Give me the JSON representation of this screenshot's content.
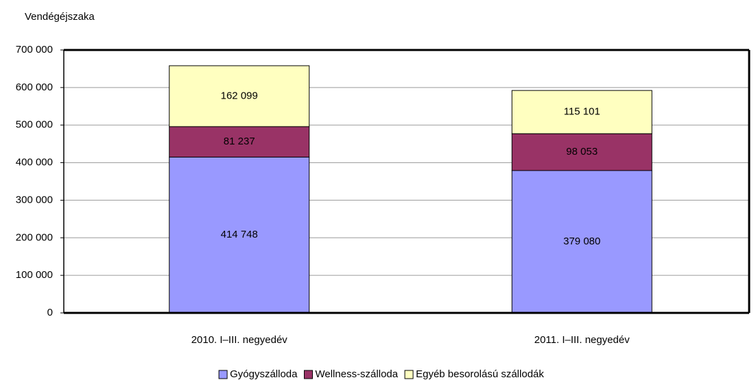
{
  "chart_data": {
    "type": "stacked_bar",
    "y_axis_title": "Vendégéjszaka",
    "categories": [
      "2010. I–III. negyedév",
      "2011. I–III. negyedév"
    ],
    "series": [
      {
        "name": "Gyógyszálloda",
        "color": "#9999ff",
        "values": [
          414748,
          379080
        ],
        "value_labels": [
          "414 748",
          "379 080"
        ]
      },
      {
        "name": "Wellness-szálloda",
        "color": "#993366",
        "values": [
          81237,
          98053
        ],
        "value_labels": [
          "81 237",
          "98 053"
        ]
      },
      {
        "name": "Egyéb besorolású szállodák",
        "color": "#ffffc0",
        "values": [
          162099,
          115101
        ],
        "value_labels": [
          "162 099",
          "115 101"
        ]
      }
    ],
    "ylim": [
      0,
      700000
    ],
    "yticks": [
      0,
      {
        "value": 100000,
        "label": "100 000"
      },
      {
        "value": 200000,
        "label": "200 000"
      },
      {
        "value": 300000,
        "label": "300 000"
      },
      {
        "value": 400000,
        "label": "400 000"
      },
      {
        "value": 500000,
        "label": "500 000"
      },
      {
        "value": 600000,
        "label": "600 000"
      },
      {
        "value": 700000,
        "label": "700 000"
      }
    ],
    "grid": true,
    "legend": "bottom"
  }
}
